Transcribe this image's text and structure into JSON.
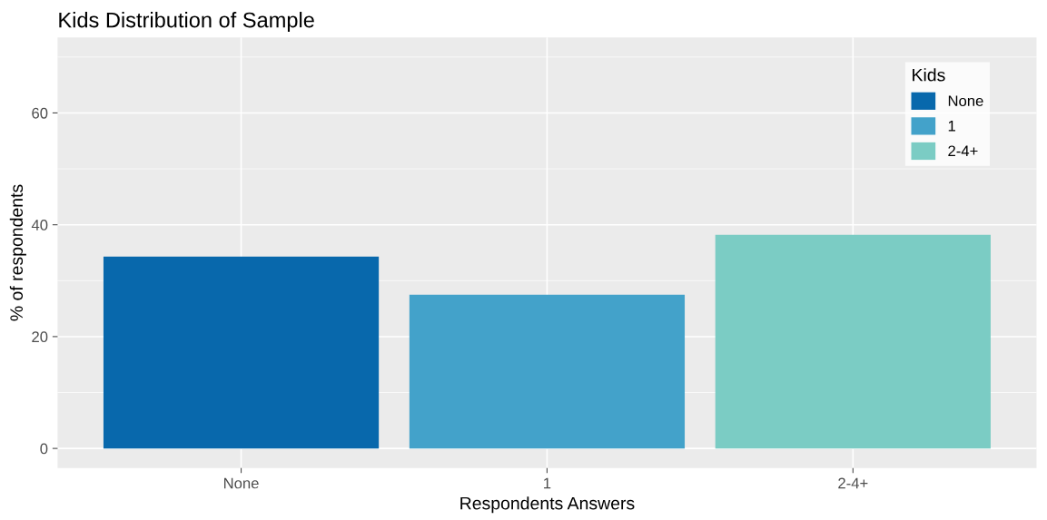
{
  "chart_data": {
    "type": "bar",
    "title": "Kids Distribution of Sample",
    "xlabel": "Respondents Answers",
    "ylabel": "% of respondents",
    "legend_title": "Kids",
    "categories": [
      "None",
      "1",
      "2-4+"
    ],
    "series": [
      {
        "name": "None",
        "color": "#0868ac",
        "values": [
          34.3,
          null,
          null
        ]
      },
      {
        "name": "1",
        "color": "#43a2ca",
        "values": [
          null,
          27.5,
          null
        ]
      },
      {
        "name": "2-4+",
        "color": "#7bccc4",
        "values": [
          null,
          null,
          38.2
        ]
      }
    ],
    "ylim": [
      -3.5,
      73.5
    ],
    "yticks": [
      0,
      {
        "value": 10,
        "label": null
      },
      20,
      {
        "value": 30,
        "label": null
      },
      40,
      {
        "value": 50,
        "label": null
      },
      60,
      {
        "value": 70,
        "label": null
      }
    ],
    "grid": true,
    "legend": "top right"
  }
}
